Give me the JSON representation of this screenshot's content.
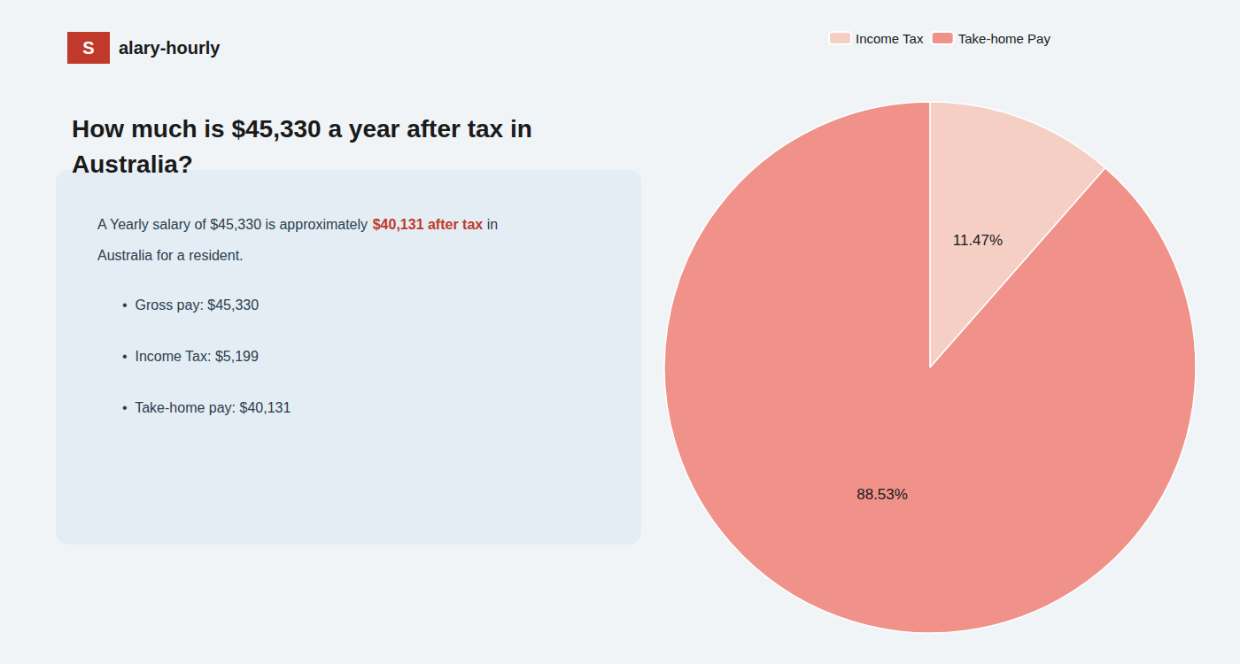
{
  "chart_data": {
    "type": "pie",
    "title": "How much is $45,330 a year after tax in\nAustralia?",
    "annotations": [
      {
        "text": "S",
        "color": "#ffffff"
      },
      {
        "text": "alary-hourly",
        "color": "#1a1a1a"
      },
      {
        "text": "A Yearly salary of $45,330 is approximately ",
        "color": "#2c3e50"
      },
      {
        "text": "$40,131 after tax",
        "color": "#c0392b"
      },
      {
        "text": " in",
        "color": "#2c3e50"
      },
      {
        "text": "Australia for a resident.",
        "color": "#2c3e50"
      },
      {
        "text": "•  Gross pay: $45,330",
        "color": "#2c3e50"
      },
      {
        "text": "•  Income Tax: $5,199",
        "color": "#2c3e50"
      },
      {
        "text": "•  Take-home pay: $40,131",
        "color": "#2c3e50"
      }
    ],
    "categories": [
      "Income Tax",
      "Take-home Pay"
    ],
    "values": [
      11.47,
      88.53
    ],
    "value_labels": [
      "11.47%",
      "88.53%"
    ],
    "colors": [
      "#f5cfc4",
      "#f0928a"
    ],
    "data_labels": true,
    "legend": "top"
  }
}
